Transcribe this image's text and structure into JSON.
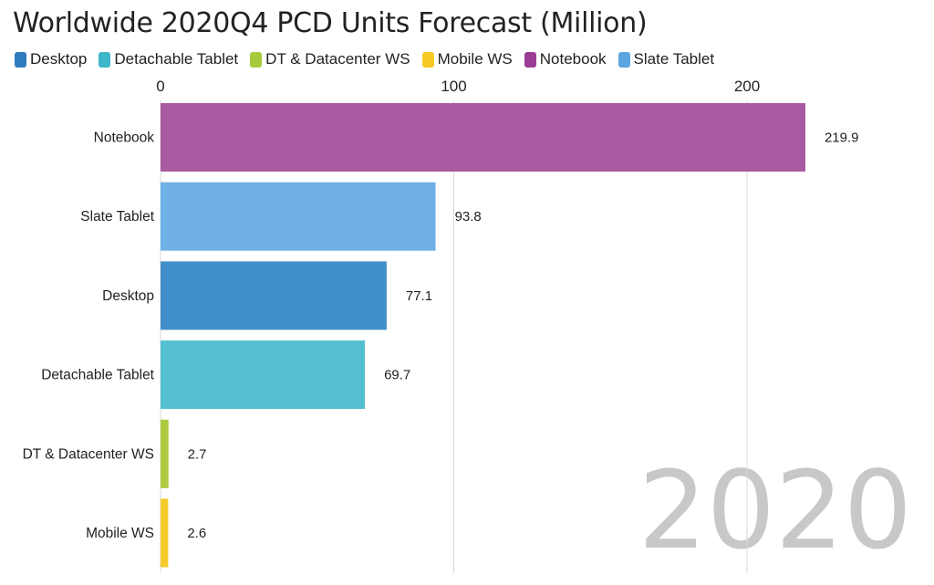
{
  "chart_data": {
    "type": "bar",
    "orientation": "horizontal",
    "title": "Worldwide 2020Q4 PCD Units Forecast (Million)",
    "legend": [
      {
        "name": "Desktop",
        "color": "#2e7bbf"
      },
      {
        "name": "Detachable Tablet",
        "color": "#3fb5c9"
      },
      {
        "name": "DT & Datacenter WS",
        "color": "#a9c93d"
      },
      {
        "name": "Mobile WS",
        "color": "#f5c926"
      },
      {
        "name": "Notebook",
        "color": "#9b3d97"
      },
      {
        "name": "Slate Tablet",
        "color": "#5aa5e0"
      }
    ],
    "categories": [
      "Notebook",
      "Slate Tablet",
      "Desktop",
      "Detachable Tablet",
      "DT & Datacenter WS",
      "Mobile WS"
    ],
    "values": [
      219.9,
      93.8,
      77.1,
      69.7,
      2.7,
      2.6
    ],
    "value_labels": [
      "219.9",
      "93.8",
      "77.1",
      "69.7",
      "2.7",
      "2.6"
    ],
    "bar_colors": [
      "#a95aa1",
      "#6fb1e6",
      "#418fc8",
      "#54bfd0",
      "#aecb3f",
      "#f6cc2d"
    ],
    "x_ticks": [
      "0",
      "100",
      "200"
    ],
    "xlim": [
      0,
      220
    ],
    "legend_position": "top",
    "grid": true,
    "watermark": "2020"
  }
}
